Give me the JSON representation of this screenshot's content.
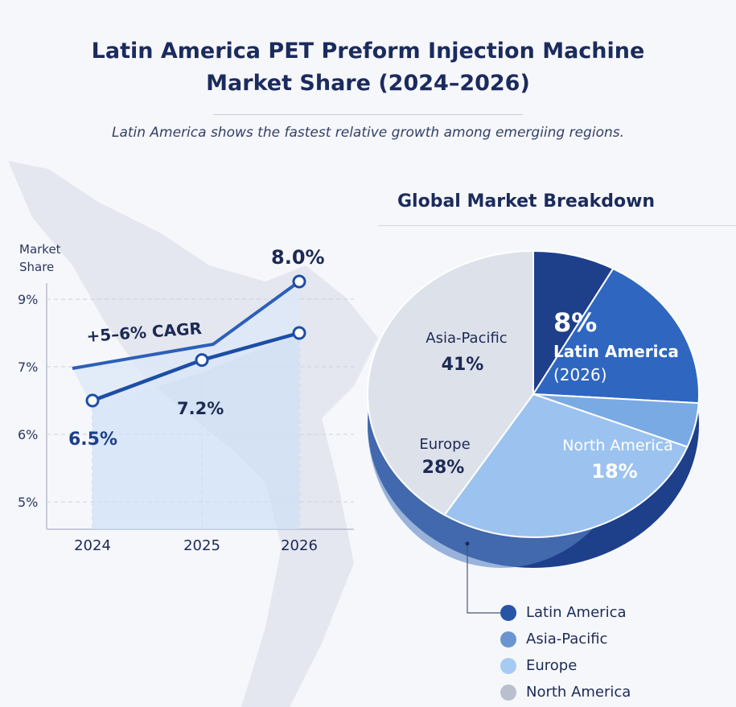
{
  "title_line1": "Latin America PET Preform Injection Machine",
  "title_line2": "Market Share (2024–2026)",
  "subtitle": "Latin America shows the fastest relative growth among emergiing regions.",
  "chart_data": [
    {
      "type": "line",
      "ylabel": "Market Share",
      "y_ticks": [
        "9%",
        "7%",
        "6%",
        "5%"
      ],
      "y_tick_values": [
        9,
        7,
        6,
        5
      ],
      "categories": [
        "2024",
        "2025",
        "2026"
      ],
      "values": [
        6.5,
        7.2,
        8.0
      ],
      "data_labels": [
        "6.5%",
        "7.2%",
        "8.0%"
      ],
      "annotation": "+5–6% CAGR",
      "grid": true
    },
    {
      "type": "pie",
      "title": "Global Market Breakdown",
      "slices": [
        {
          "name": "Latin America",
          "label": "Latin America (2026)",
          "label_line1": "Latin America",
          "label_line2": "(2026)",
          "value": 8,
          "value_label": "8%",
          "color": "#1e3f8a"
        },
        {
          "name": "North America",
          "label": "North America",
          "value": 18,
          "value_label": "18%",
          "color": "#2f66c0"
        },
        {
          "name": "Europe",
          "label": "Europe",
          "value": 28,
          "value_label": "28%",
          "color": "#9cc3ef"
        },
        {
          "name": "Asia-Pacific",
          "label": "Asia-Pacific",
          "value": 41,
          "value_label": "41%",
          "color": "#dde1ea"
        }
      ],
      "legend": [
        {
          "label": "Latin America",
          "color": "#2854a8"
        },
        {
          "label": "Asia-Pacific",
          "color": "#6b95cf"
        },
        {
          "label": "Europe",
          "color": "#a6cbf2"
        },
        {
          "label": "North America",
          "color": "#b9bfcc"
        }
      ],
      "legend_position": "bottom-right"
    }
  ]
}
